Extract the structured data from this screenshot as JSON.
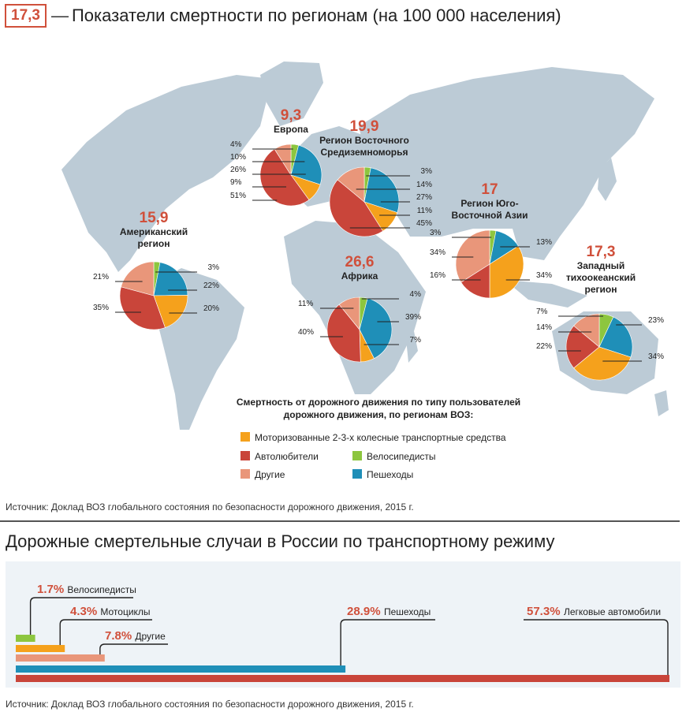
{
  "header": {
    "badge": "17,3",
    "dash": "—",
    "title": "Показатели смертности по регионам (на 100 000 населения)"
  },
  "colors": {
    "motorized": "#f5a11c",
    "drivers": "#c9453a",
    "other": "#e9967a",
    "cyclists": "#8dc63f",
    "pedestrians": "#1f8fb8",
    "accent": "#d0503b",
    "land": "#bccbd6",
    "panel": "#eef3f7"
  },
  "legend": {
    "title_line1": "Смертность от дорожного движения по типу пользователей",
    "title_line2": "дорожного движения, по регионам ВОЗ:",
    "items": {
      "motorized": "Моторизованные 2-3-х колесные транспортные средства",
      "drivers": "Автолюбители",
      "cyclists": "Велосипедисты",
      "other": "Другие",
      "pedestrians": "Пешеходы"
    }
  },
  "chart_data": [
    {
      "type": "pie",
      "slice_order": [
        "cyclists",
        "pedestrians",
        "motorized",
        "drivers",
        "other"
      ],
      "regions": [
        {
          "id": "americas",
          "rate": "15,9",
          "name_lines": [
            "Американский",
            "регион"
          ],
          "slices": {
            "cyclists": 3,
            "pedestrians": 22,
            "motorized": 20,
            "drivers": 35,
            "other": 21
          },
          "labels": {
            "cyclists": "3%",
            "pedestrians": "22%",
            "motorized": "20%",
            "drivers": "35%",
            "other": "21%"
          }
        },
        {
          "id": "europe",
          "rate": "9,3",
          "name_lines": [
            "Европа"
          ],
          "slices": {
            "cyclists": 4,
            "pedestrians": 26,
            "motorized": 10,
            "drivers": 51,
            "other": 9
          },
          "labels": {
            "cyclists": "4%",
            "motorized": "10%",
            "pedestrians": "26%",
            "other": "9%",
            "drivers": "51%"
          }
        },
        {
          "id": "emr",
          "rate": "19,9",
          "name_lines": [
            "Регион Восточного",
            "Средиземноморья"
          ],
          "slices": {
            "cyclists": 3,
            "pedestrians": 27,
            "motorized": 11,
            "drivers": 45,
            "other": 14
          },
          "labels": {
            "cyclists": "3%",
            "other": "14%",
            "pedestrians": "27%",
            "motorized": "11%",
            "drivers": "45%"
          }
        },
        {
          "id": "sear",
          "rate": "17",
          "name_lines": [
            "Регион Юго-",
            "Восточной Азии"
          ],
          "slices": {
            "cyclists": 3,
            "pedestrians": 13,
            "motorized": 34,
            "drivers": 16,
            "other": 34
          },
          "labels": {
            "cyclists": "3%",
            "pedestrians": "13%",
            "motorized": "34%",
            "drivers": "16%",
            "other": "34%"
          }
        },
        {
          "id": "africa",
          "rate": "26,6",
          "name_lines": [
            "Африка"
          ],
          "slices": {
            "cyclists": 4,
            "pedestrians": 39,
            "motorized": 7,
            "drivers": 40,
            "other": 11
          },
          "labels": {
            "cyclists": "4%",
            "pedestrians": "39%",
            "motorized": "7%",
            "drivers": "40%",
            "other": "11%"
          }
        },
        {
          "id": "wpr",
          "rate": "17,3",
          "name_lines": [
            "Западный",
            "тихоокеанский",
            "регион"
          ],
          "slices": {
            "cyclists": 7,
            "pedestrians": 23,
            "motorized": 34,
            "drivers": 22,
            "other": 14
          },
          "labels": {
            "cyclists": "7%",
            "pedestrians": "23%",
            "motorized": "34%",
            "drivers": "22%",
            "other": "14%"
          }
        }
      ]
    },
    {
      "type": "bar",
      "orientation": "horizontal",
      "unit": "%",
      "bars": [
        {
          "id": "cyclists",
          "value": 1.7,
          "value_label": "1.7%",
          "label": "Велосипедисты",
          "color": "#8dc63f"
        },
        {
          "id": "moto",
          "value": 4.3,
          "value_label": "4.3%",
          "label": "Мотоциклы",
          "color": "#f5a11c"
        },
        {
          "id": "other",
          "value": 7.8,
          "value_label": "7.8%",
          "label": "Другие",
          "color": "#e9967a"
        },
        {
          "id": "pedestrians",
          "value": 28.9,
          "value_label": "28.9%",
          "label": "Пешеходы",
          "color": "#1f8fb8"
        },
        {
          "id": "cars",
          "value": 57.3,
          "value_label": "57.3%",
          "label": "Легковые автомобили",
          "color": "#c9453a"
        }
      ]
    }
  ],
  "source": "Источник: Доклад ВОЗ глобального состояния по безопасности дорожного движения, 2015 г.",
  "russia": {
    "title": "Дорожные смертельные случаи в России по транспортному режиму"
  }
}
